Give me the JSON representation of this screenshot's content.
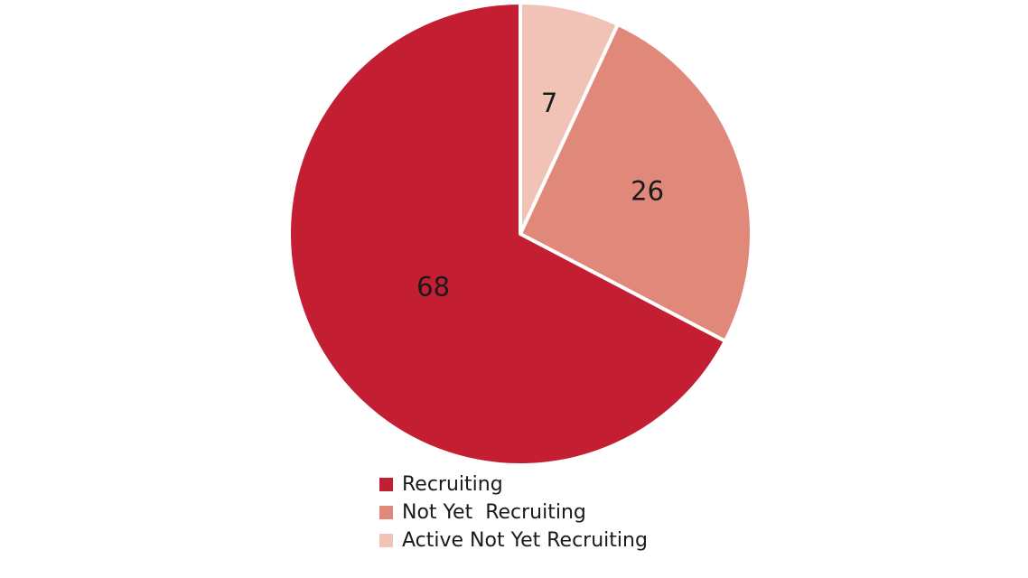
{
  "chart_data": {
    "type": "pie",
    "categories": [
      "Recruiting",
      "Not Yet  Recruiting",
      "Active Not Yet Recruiting"
    ],
    "values": [
      68,
      26,
      7
    ],
    "data_labels": [
      "68",
      "26",
      "7"
    ],
    "colors": [
      "#c41e33",
      "#e0887a",
      "#f1c2b6"
    ],
    "start": "12 o'clock",
    "direction": "clockwise, smallest slice first",
    "legend_position": "bottom"
  },
  "legend": {
    "items": [
      {
        "label": "Recruiting",
        "color": "#c41e33"
      },
      {
        "label": "Not Yet  Recruiting",
        "color": "#e0887a"
      },
      {
        "label": "Active Not Yet Recruiting",
        "color": "#f1c2b6"
      }
    ]
  }
}
